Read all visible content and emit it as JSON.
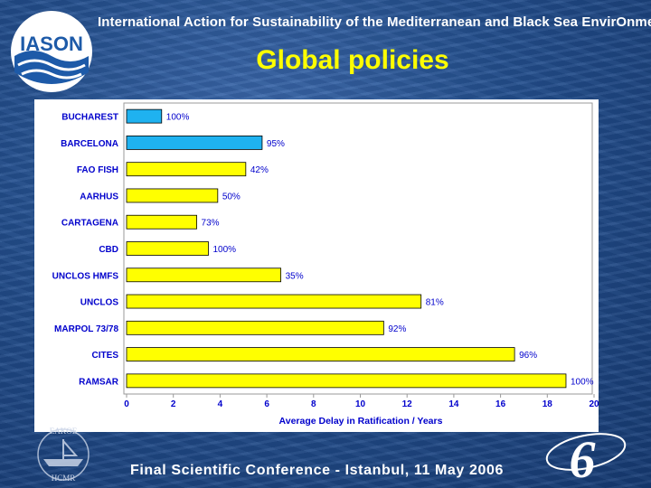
{
  "header": {
    "banner": "International Action for Sustainability of the Mediterranean and Black Sea EnvirOnmeNt",
    "logo_text": "IASON"
  },
  "slide": {
    "title": "Global policies"
  },
  "footer": {
    "text": "Final Scientific Conference - Istanbul, 11 May 2006",
    "emblem_text_top": "EAKOE",
    "emblem_text_bottom": "HCMR",
    "program_mark": "6"
  },
  "colors": {
    "title": "#ffff00",
    "bar_blue": "#1fb2f0",
    "bar_yellow": "#ffff00",
    "axis_label": "#0000cc"
  },
  "chart_data": {
    "type": "bar",
    "orientation": "horizontal",
    "xlabel": "Average Delay in Ratification / Years",
    "xlim": [
      0,
      20
    ],
    "xticks": [
      0,
      2,
      4,
      6,
      8,
      10,
      12,
      14,
      16,
      18,
      20
    ],
    "categories": [
      "BUCHAREST",
      "BARCELONA",
      "FAO FISH",
      "AARHUS",
      "CARTAGENA",
      "CBD",
      "UNCLOS HMFS",
      "UNCLOS",
      "MARPOL 73/78",
      "CITES",
      "RAMSAR"
    ],
    "values": [
      1.5,
      5.8,
      5.1,
      3.9,
      3.0,
      3.5,
      6.6,
      12.6,
      11.0,
      16.6,
      18.8
    ],
    "labels": [
      "100%",
      "95%",
      "42%",
      "50%",
      "73%",
      "100%",
      "35%",
      "81%",
      "92%",
      "96%",
      "100%"
    ],
    "bar_colors": [
      "blue",
      "blue",
      "yellow",
      "yellow",
      "yellow",
      "yellow",
      "yellow",
      "yellow",
      "yellow",
      "yellow",
      "yellow"
    ]
  }
}
